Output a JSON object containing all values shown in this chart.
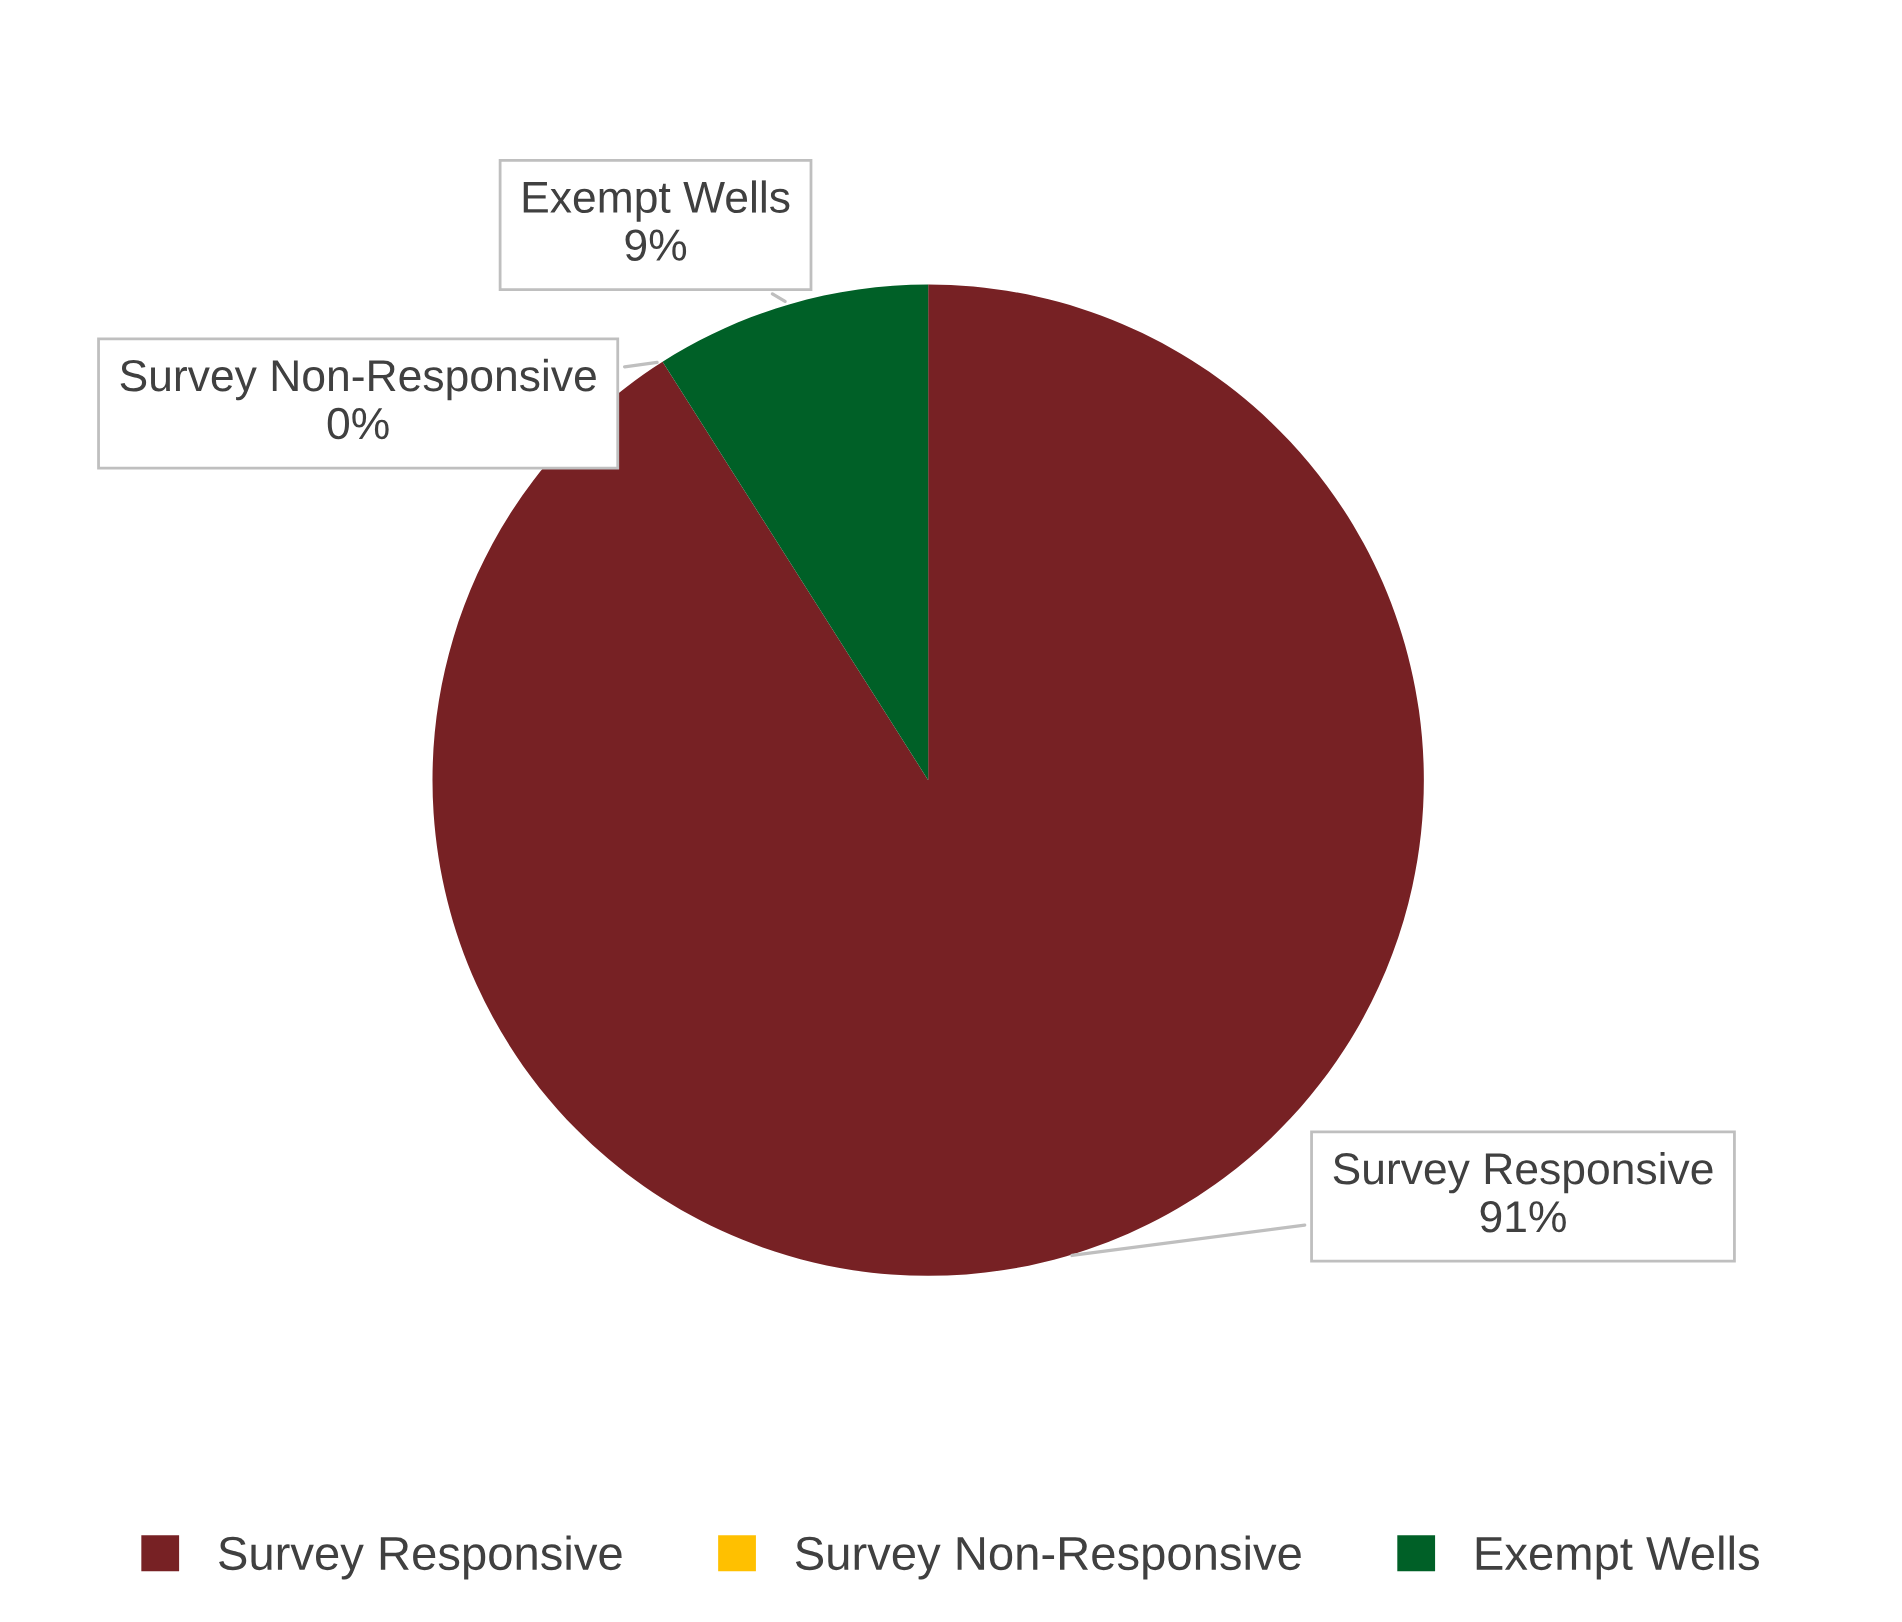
{
  "chart_data": {
    "type": "pie",
    "categories": [
      "Survey Responsive",
      "Survey Non-Responsive",
      "Exempt Wells"
    ],
    "values": [
      91,
      0,
      9
    ],
    "value_labels": [
      "91%",
      "0%",
      "9%"
    ],
    "colors": [
      "#772124",
      "#ffc000",
      "#006027"
    ],
    "legend": "bottom"
  }
}
